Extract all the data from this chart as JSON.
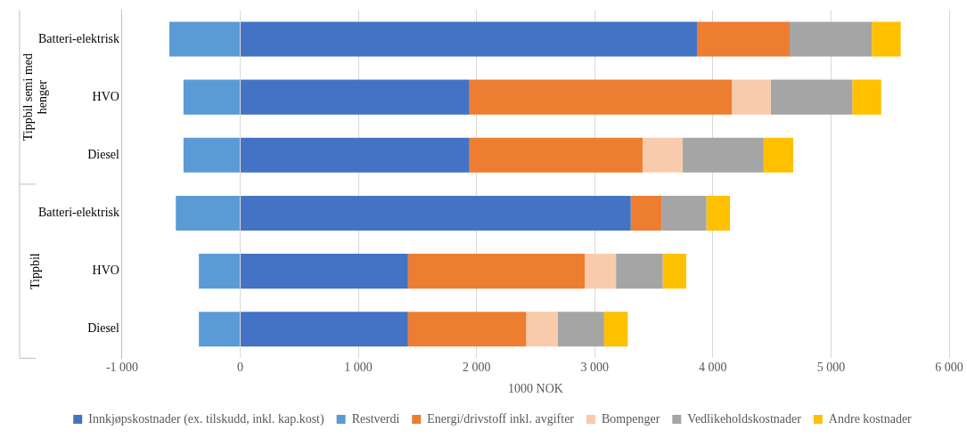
{
  "chart_data": {
    "type": "bar",
    "orientation": "horizontal",
    "stacked": true,
    "xlabel": "1000 NOK",
    "categories": [
      "Batteri-elektrisk",
      "HVO",
      "Diesel",
      "Batteri-elektrisk",
      "HVO",
      "Diesel"
    ],
    "annotations": [
      "Tippbil semi med henger",
      "Tippbil"
    ],
    "series": [
      {
        "name": "Innkjøpskostnader (ex. tilskudd, inkl. kap.kost)",
        "color": "#4472c4",
        "values": [
          3870,
          1940,
          1940,
          3305,
          1420,
          1420
        ]
      },
      {
        "name": "Restverdi",
        "color": "#5b9bd5",
        "values": [
          -600,
          -480,
          -480,
          -545,
          -350,
          -350
        ]
      },
      {
        "name": "Energi/drivstoff inkl. avgifter",
        "color": "#ed7d31",
        "values": [
          780,
          2220,
          1465,
          260,
          1495,
          1000
        ]
      },
      {
        "name": "Bompenger",
        "color": "#f8cbad",
        "values": [
          null,
          330,
          340,
          null,
          265,
          265
        ]
      },
      {
        "name": "Vedlikeholdskostnader",
        "color": "#a5a5a5",
        "values": [
          695,
          690,
          685,
          380,
          395,
          395
        ]
      },
      {
        "name": "Andre kostnader",
        "color": "#ffc000",
        "values": [
          245,
          245,
          250,
          200,
          200,
          200
        ]
      }
    ],
    "xlim": [
      -1000,
      6000
    ],
    "xticks": [
      {
        "value": -1000,
        "label": "-1 000"
      },
      0,
      {
        "value": 1000,
        "label": "1 000"
      },
      {
        "value": 2000,
        "label": "2 000"
      },
      {
        "value": 3000,
        "label": "3 000"
      },
      {
        "value": 4000,
        "label": "4 000"
      },
      {
        "value": 5000,
        "label": "5 000"
      },
      {
        "value": 6000,
        "label": "6 000"
      }
    ],
    "grid": "x",
    "legend": "bottom"
  }
}
